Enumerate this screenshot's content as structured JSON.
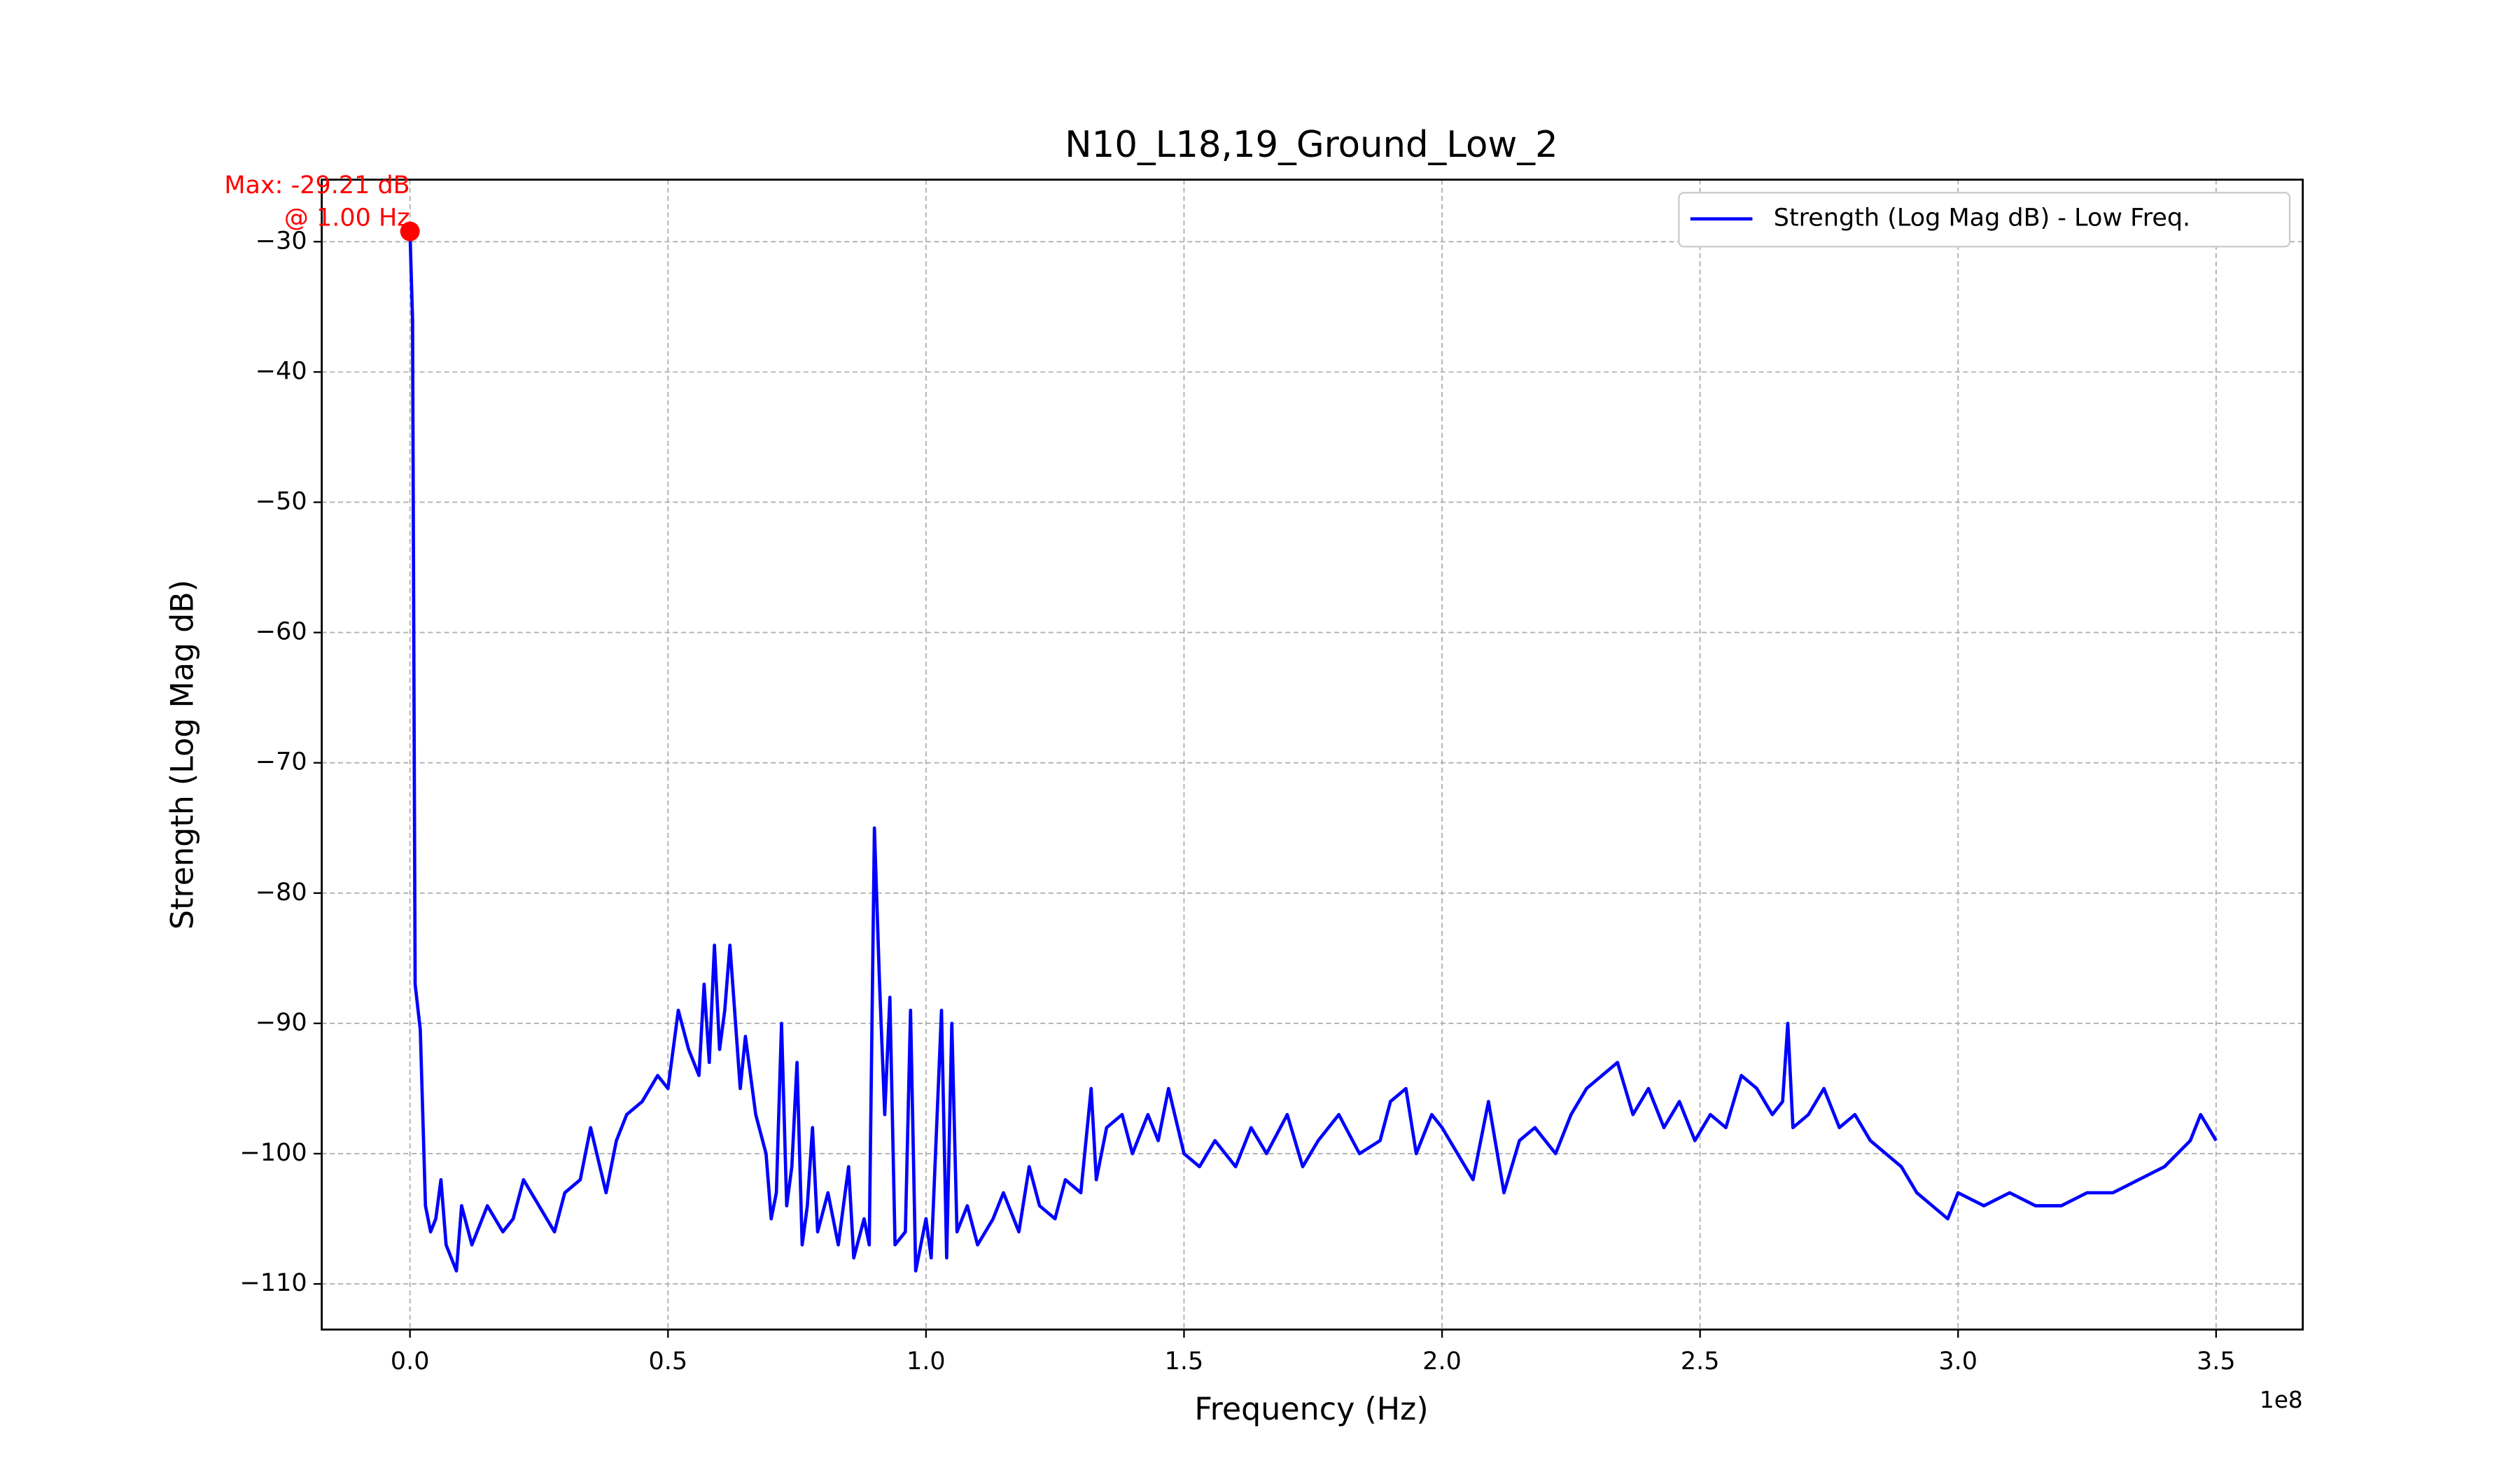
{
  "chart_data": {
    "type": "line",
    "title": "N10_L18,19_Ground_Low_2",
    "x_label": "Frequency (Hz)",
    "y_label": "Strength (Log Mag dB)",
    "x_offset_label": "1e8",
    "xlim": [
      -17100000,
      366800000
    ],
    "ylim": [
      -113.5,
      -25.24
    ],
    "xticks": [
      {
        "value": 0,
        "label": "0.0"
      },
      {
        "value": 50000000,
        "label": "0.5"
      },
      {
        "value": 100000000,
        "label": "1.0"
      },
      {
        "value": 150000000,
        "label": "1.5"
      },
      {
        "value": 200000000,
        "label": "2.0"
      },
      {
        "value": 250000000,
        "label": "2.5"
      },
      {
        "value": 300000000,
        "label": "3.0"
      },
      {
        "value": 350000000,
        "label": "3.5"
      }
    ],
    "yticks": [
      {
        "value": -30,
        "label": "−30"
      },
      {
        "value": -40,
        "label": "−40"
      },
      {
        "value": -50,
        "label": "−50"
      },
      {
        "value": -60,
        "label": "−60"
      },
      {
        "value": -70,
        "label": "−70"
      },
      {
        "value": -80,
        "label": "−80"
      },
      {
        "value": -90,
        "label": "−90"
      },
      {
        "value": -100,
        "label": "−100"
      },
      {
        "value": -110,
        "label": "−110"
      }
    ],
    "grid": true,
    "legend_position": "upper right",
    "x": [
      1,
      500000,
      1000000,
      2000000,
      3000000,
      4000000,
      5000000,
      6000000,
      7000000,
      9000000,
      10000000,
      12000000,
      15000000,
      18000000,
      20000000,
      22000000,
      25000000,
      28000000,
      30000000,
      33000000,
      35000000,
      38000000,
      40000000,
      42000000,
      45000000,
      48000000,
      50000000,
      52000000,
      54000000,
      56000000,
      57000000,
      58000000,
      59000000,
      60000000,
      61000000,
      62000000,
      64000000,
      65000000,
      67000000,
      69000000,
      70000000,
      71000000,
      72000000,
      73000000,
      74000000,
      75000000,
      76000000,
      77000000,
      78000000,
      79000000,
      81000000,
      83000000,
      85000000,
      86000000,
      88000000,
      89000000,
      90000000,
      91000000,
      92000000,
      93000000,
      94000000,
      96000000,
      97000000,
      98000000,
      100000000,
      101000000,
      103000000,
      104000000,
      105000000,
      106000000,
      108000000,
      110000000,
      113000000,
      115000000,
      118000000,
      120000000,
      122000000,
      125000000,
      127000000,
      130000000,
      132000000,
      133000000,
      135000000,
      138000000,
      140000000,
      143000000,
      145000000,
      147000000,
      150000000,
      153000000,
      156000000,
      160000000,
      163000000,
      166000000,
      170000000,
      173000000,
      176000000,
      180000000,
      184000000,
      188000000,
      190000000,
      193000000,
      195000000,
      198000000,
      200000000,
      203000000,
      206000000,
      209000000,
      212000000,
      215000000,
      218000000,
      222000000,
      225000000,
      228000000,
      231000000,
      234000000,
      237000000,
      240000000,
      243000000,
      246000000,
      249000000,
      252000000,
      255000000,
      258000000,
      261000000,
      264000000,
      266000000,
      267000000,
      268000000,
      271000000,
      274000000,
      277000000,
      280000000,
      283000000,
      286000000,
      289000000,
      292000000,
      295000000,
      298000000,
      300000000,
      305000000,
      310000000,
      315000000,
      320000000,
      325000000,
      330000000,
      335000000,
      340000000,
      345000000,
      347000000,
      350000000
    ],
    "series": [
      {
        "name": "Strength (Log Mag dB) - Low Freq.",
        "color": "#0000ff",
        "values": [
          -29.21,
          -36,
          -87,
          -90.5,
          -104,
          -106,
          -105,
          -102,
          -107,
          -109,
          -104,
          -107,
          -104,
          -106,
          -105,
          -102,
          -104,
          -106,
          -103,
          -102,
          -98,
          -103,
          -99,
          -97,
          -96,
          -94,
          -95,
          -89,
          -92,
          -94,
          -87,
          -93,
          -84,
          -92,
          -89,
          -84,
          -95,
          -91,
          -97,
          -100,
          -105,
          -103,
          -90,
          -104,
          -101,
          -93,
          -107,
          -104,
          -98,
          -106,
          -103,
          -107,
          -101,
          -108,
          -105,
          -107,
          -75,
          -87,
          -97,
          -88,
          -107,
          -106,
          -89,
          -109,
          -105,
          -108,
          -89,
          -108,
          -90,
          -106,
          -104,
          -107,
          -105,
          -103,
          -106,
          -101,
          -104,
          -105,
          -102,
          -103,
          -95,
          -102,
          -98,
          -97,
          -100,
          -97,
          -99,
          -95,
          -100,
          -101,
          -99,
          -101,
          -98,
          -100,
          -97,
          -101,
          -99,
          -97,
          -100,
          -99,
          -96,
          -95,
          -100,
          -97,
          -98,
          -100,
          -102,
          -96,
          -103,
          -99,
          -98,
          -100,
          -97,
          -95,
          -94,
          -93,
          -97,
          -95,
          -98,
          -96,
          -99,
          -97,
          -98,
          -94,
          -95,
          -97,
          -96,
          -90,
          -98,
          -97,
          -95,
          -98,
          -97,
          -99,
          -100,
          -101,
          -103,
          -104,
          -105,
          -103,
          -104,
          -103,
          -104,
          -104,
          -103,
          -103,
          -102,
          -101,
          -99,
          -97,
          -99
        ]
      }
    ],
    "max_point": {
      "x": 1,
      "y": -29.21,
      "color": "#ff0000",
      "labels": [
        "Max: -29.21 dB",
        "@ 1.00 Hz"
      ]
    }
  }
}
